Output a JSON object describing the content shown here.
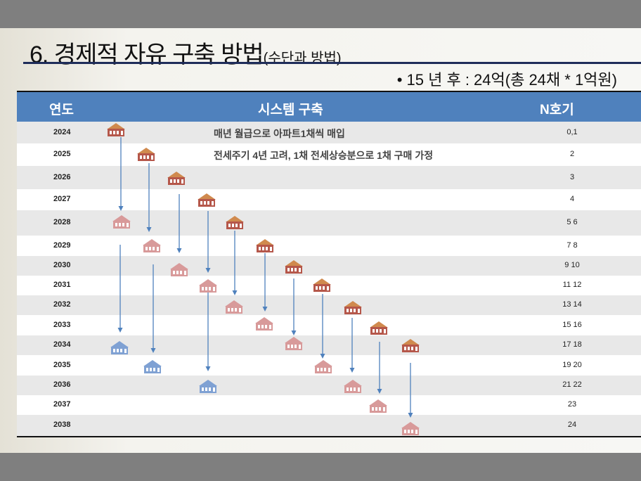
{
  "title": {
    "main": "6. 경제적 자유 구축 방법",
    "sub": "(수단과 방법)"
  },
  "summary": "• 15 년  후 : 24억(총 24채 * 1억원)",
  "table": {
    "headers": [
      "연도",
      "시스템 구축",
      "N호기"
    ],
    "rows": [
      {
        "year": "2024",
        "n": "0,1",
        "desc": "매년 월급으로 아파트1채씩 매입"
      },
      {
        "year": "2025",
        "n": "2",
        "desc": "전세주기 4년 고려, 1채 전세상승분으로 1채 구매 가정"
      },
      {
        "year": "2026",
        "n": "3"
      },
      {
        "year": "2027",
        "n": "4"
      },
      {
        "year": "2028",
        "n": "5 6"
      },
      {
        "year": "2029",
        "n": "7 8"
      },
      {
        "year": "2030",
        "n": "9 10"
      },
      {
        "year": "2031",
        "n": "11 12"
      },
      {
        "year": "2032",
        "n": "13 14"
      },
      {
        "year": "2033",
        "n": "15 16"
      },
      {
        "year": "2034",
        "n": "17 18"
      },
      {
        "year": "2035",
        "n": "19 20"
      },
      {
        "year": "2036",
        "n": "21 22"
      },
      {
        "year": "2037",
        "n": "23"
      },
      {
        "year": "2038",
        "n": "24"
      }
    ]
  },
  "colors": {
    "header": "#4f81bd",
    "house_new": "#b5574a",
    "house_roof_new": "#d08a4e",
    "house_resale": "#d89a9a",
    "house_third": "#7fa1d3",
    "arrow": "#4f81bd"
  }
}
